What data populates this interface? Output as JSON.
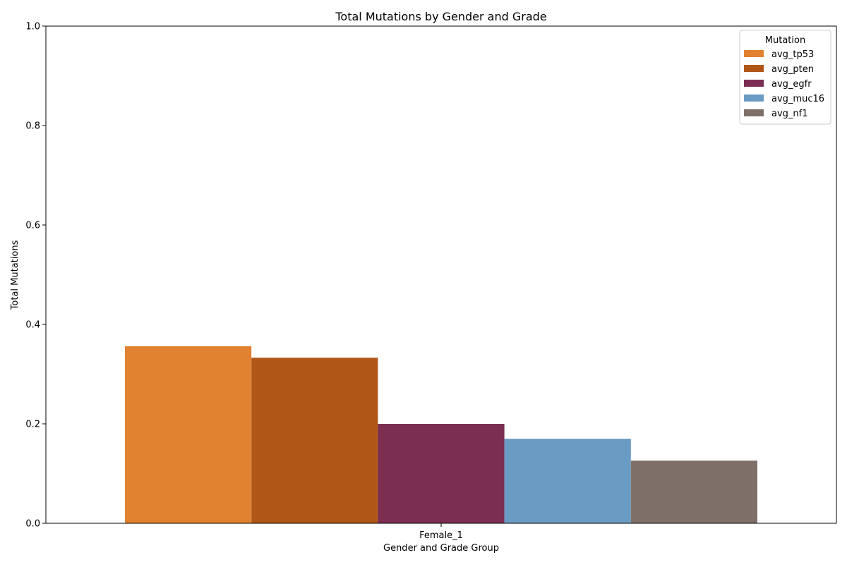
{
  "chart_data": {
    "type": "bar",
    "title": "Total Mutations by Gender and Grade",
    "xlabel": "Gender and Grade Group",
    "ylabel": "Total Mutations",
    "categories": [
      "Female_1"
    ],
    "ylim": [
      0,
      1.0
    ],
    "yticks": [
      0.0,
      0.2,
      0.4,
      0.6,
      0.8,
      1.0
    ],
    "ytick_labels": [
      "0.0",
      "0.2",
      "0.4",
      "0.6",
      "0.8",
      "1.0"
    ],
    "grid": false,
    "legend": {
      "title": "Mutation",
      "placement": "top-right"
    },
    "series": [
      {
        "name": "avg_tp53",
        "values": [
          0.356
        ],
        "color": "#e08230"
      },
      {
        "name": "avg_pten",
        "values": [
          0.333
        ],
        "color": "#b05718"
      },
      {
        "name": "avg_egfr",
        "values": [
          0.2
        ],
        "color": "#7b2d52"
      },
      {
        "name": "avg_muc16",
        "values": [
          0.17
        ],
        "color": "#6a9bc3"
      },
      {
        "name": "avg_nf1",
        "values": [
          0.126
        ],
        "color": "#7e7068"
      }
    ]
  }
}
